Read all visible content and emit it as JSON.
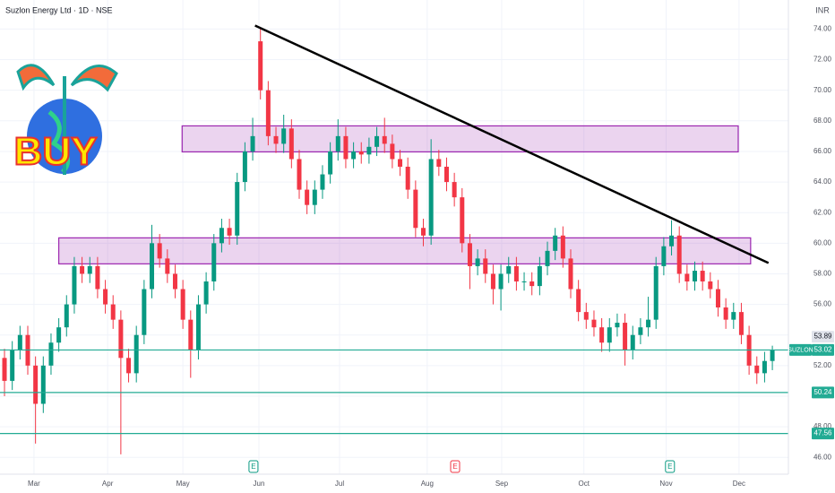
{
  "chart_data": {
    "type": "candlestick",
    "title": "Suzlon Energy Ltd · 1D · NSE",
    "currency": "INR",
    "logo_text": "BUY",
    "up_color": "#089981",
    "down_color": "#f23645",
    "xlim": [
      -0.58,
      101.07
    ],
    "xticks": [
      {
        "value": 3.8,
        "label": "Mar"
      },
      {
        "value": 13.3,
        "label": "Apr"
      },
      {
        "value": 23.0,
        "label": "May"
      },
      {
        "value": 32.8,
        "label": "Jun"
      },
      {
        "value": 43.2,
        "label": "Jul"
      },
      {
        "value": 54.5,
        "label": "Aug"
      },
      {
        "value": 64.1,
        "label": "Sep"
      },
      {
        "value": 74.7,
        "label": "Oct"
      },
      {
        "value": 85.3,
        "label": "Nov"
      },
      {
        "value": 94.7,
        "label": "Dec"
      }
    ],
    "ylim": [
      44.9,
      75.9
    ],
    "yticks": [
      {
        "value": 46,
        "label": "46.00"
      },
      {
        "value": 48,
        "label": "48.00"
      },
      {
        "value": 50,
        "label": "50.00"
      },
      {
        "value": 52,
        "label": "52.00"
      },
      {
        "value": 54,
        "label": "54.00"
      },
      {
        "value": 56,
        "label": "56.00"
      },
      {
        "value": 58,
        "label": "58.00"
      },
      {
        "value": 60,
        "label": "60.00"
      },
      {
        "value": 62,
        "label": "62.00"
      },
      {
        "value": 64,
        "label": "64.00"
      },
      {
        "value": 66,
        "label": "66.00"
      },
      {
        "value": 68,
        "label": "68.00"
      },
      {
        "value": 70,
        "label": "70.00"
      },
      {
        "value": 72,
        "label": "72.00"
      },
      {
        "value": 74,
        "label": "74.00"
      }
    ],
    "grid": true,
    "open": [
      52.5,
      51,
      53,
      54,
      52,
      49.5,
      52,
      53.5,
      54.5,
      56,
      58.5,
      58,
      58.5,
      57,
      56,
      55,
      52.5,
      51.5,
      54,
      57,
      60,
      59,
      58,
      57,
      55,
      53,
      56,
      57.5,
      60,
      61,
      60.5,
      64,
      66,
      73.2,
      70,
      67,
      66.5,
      67.5,
      65.5,
      63.5,
      62.5,
      63.5,
      64.5,
      66,
      67,
      65.5,
      66,
      65.8,
      66.3,
      67,
      66.5,
      65.5,
      65,
      63.5,
      61,
      60.5,
      65.5,
      65,
      64,
      63,
      60,
      58.5,
      59,
      58,
      57,
      58,
      58.5,
      57.5,
      57.5,
      57.2,
      58.5,
      59.5,
      60.5,
      59,
      57,
      55.5,
      55,
      54.5,
      53.5,
      54.5,
      54.8,
      53,
      54,
      54.5,
      55,
      58.5,
      59.8,
      60.5,
      58,
      57.5,
      58.2,
      57.5,
      57,
      55.8,
      55,
      55.5,
      54,
      52,
      51.5,
      52.3
    ],
    "high": [
      53.1,
      53.6,
      54.6,
      54.6,
      52.6,
      52.6,
      54.1,
      55.1,
      56.6,
      59.1,
      59.1,
      59.1,
      59.1,
      57.6,
      56.6,
      55.6,
      53.1,
      54.6,
      57.6,
      61.2,
      60.6,
      59.6,
      58.6,
      57.6,
      55.6,
      56.6,
      58.1,
      60.6,
      61.6,
      61.6,
      64.6,
      66.6,
      68.2,
      74.0,
      70.6,
      67.6,
      68.4,
      68.1,
      66.1,
      64.1,
      64.1,
      65.1,
      66.6,
      68.1,
      67.6,
      66.6,
      66.6,
      66.9,
      67.6,
      68.2,
      67.1,
      66.1,
      65.6,
      64.1,
      61.6,
      66.8,
      66.1,
      65.6,
      64.6,
      63.6,
      60.6,
      59.6,
      59.6,
      58.6,
      58.6,
      59.1,
      59.1,
      58.1,
      58.1,
      59.1,
      60.1,
      61.0,
      61.1,
      59.6,
      57.6,
      56.1,
      55.6,
      55.1,
      55.1,
      55.4,
      55.4,
      54.6,
      55.1,
      56.5,
      59.1,
      60.4,
      61.5,
      61.1,
      58.6,
      58.8,
      58.8,
      58.1,
      57.6,
      56.4,
      56.1,
      56.1,
      54.6,
      52.6,
      52.9,
      53.3
    ],
    "low": [
      50.0,
      50.4,
      52.4,
      51.4,
      46.9,
      48.9,
      51.4,
      52.9,
      53.9,
      55.4,
      57.4,
      57.4,
      56.4,
      55.4,
      54.4,
      46.2,
      50.9,
      50.9,
      53.4,
      56.4,
      58.4,
      57.4,
      56.4,
      54.4,
      51.2,
      52.4,
      55.4,
      56.9,
      59.4,
      59.9,
      59.9,
      63.4,
      65.4,
      69.4,
      66.4,
      65.9,
      65.9,
      64.9,
      62.9,
      61.9,
      61.9,
      62.9,
      63.9,
      65.4,
      64.9,
      64.9,
      65.2,
      65.2,
      65.7,
      65.9,
      64.9,
      64.4,
      62.9,
      60.4,
      59.8,
      59.9,
      64.4,
      63.4,
      62.4,
      59.4,
      57.0,
      57.9,
      57.4,
      56.0,
      55.6,
      57.4,
      56.9,
      56.9,
      56.6,
      56.6,
      57.9,
      58.9,
      58.4,
      56.4,
      54.9,
      54.4,
      53.9,
      52.9,
      52.9,
      53.9,
      52.0,
      52.4,
      53.4,
      53.9,
      54.4,
      57.9,
      59.2,
      57.4,
      56.9,
      56.9,
      56.9,
      56.4,
      55.2,
      54.4,
      54.4,
      53.4,
      51.4,
      50.8,
      50.9,
      51.7
    ],
    "close": [
      51,
      53,
      54,
      52,
      49.5,
      52,
      53.5,
      54.5,
      56,
      58.5,
      58,
      58.5,
      57,
      56,
      55,
      52.5,
      51.5,
      54,
      57,
      60,
      59,
      58,
      57,
      55,
      53,
      56,
      57.5,
      60,
      61,
      60.5,
      64,
      66,
      67,
      70,
      67,
      66.5,
      67.5,
      65.5,
      63.5,
      62.5,
      63.5,
      64.5,
      66,
      67,
      65.5,
      66,
      65.8,
      66.3,
      67,
      66.5,
      65.5,
      65,
      63.5,
      61,
      60.5,
      65.5,
      65,
      64,
      63,
      60,
      58.5,
      59,
      58,
      57,
      58,
      58.5,
      57.5,
      57.5,
      57.2,
      58.5,
      59.5,
      60.5,
      59,
      57,
      55.5,
      55,
      54.5,
      53.5,
      54.5,
      54.8,
      53,
      54,
      54.5,
      55,
      58.5,
      59.8,
      60.5,
      58,
      57.5,
      58.2,
      57.5,
      57,
      55.8,
      55,
      55.5,
      54,
      52,
      51.5,
      52.3,
      53.02
    ],
    "zones": [
      {
        "x": [
          22.9,
          94.6
        ],
        "y": [
          65.97,
          67.67
        ],
        "color": "#9c27b0"
      },
      {
        "x": [
          7.0,
          96.2
        ],
        "y": [
          58.65,
          60.35
        ],
        "color": "#9c27b0"
      }
    ],
    "trendline": {
      "x": [
        32.3,
        98.5
      ],
      "y": [
        74.23,
        58.71
      ],
      "color": "#000000"
    },
    "price_labels": [
      {
        "value": 53.89,
        "label": "53.89",
        "style": "gray"
      },
      {
        "value": 53.02,
        "label": "53.02",
        "style": "last",
        "tag": "SUZLON",
        "line": true
      },
      {
        "value": 50.24,
        "label": "50.24",
        "style": "teal",
        "line": true
      },
      {
        "value": 47.56,
        "label": "47.56",
        "style": "teal",
        "line": true
      }
    ],
    "events": [
      {
        "x": 32.1,
        "label": "E",
        "color": "#089981"
      },
      {
        "x": 58.1,
        "label": "E",
        "color": "#f23645"
      },
      {
        "x": 85.8,
        "label": "E",
        "color": "#089981"
      }
    ]
  }
}
